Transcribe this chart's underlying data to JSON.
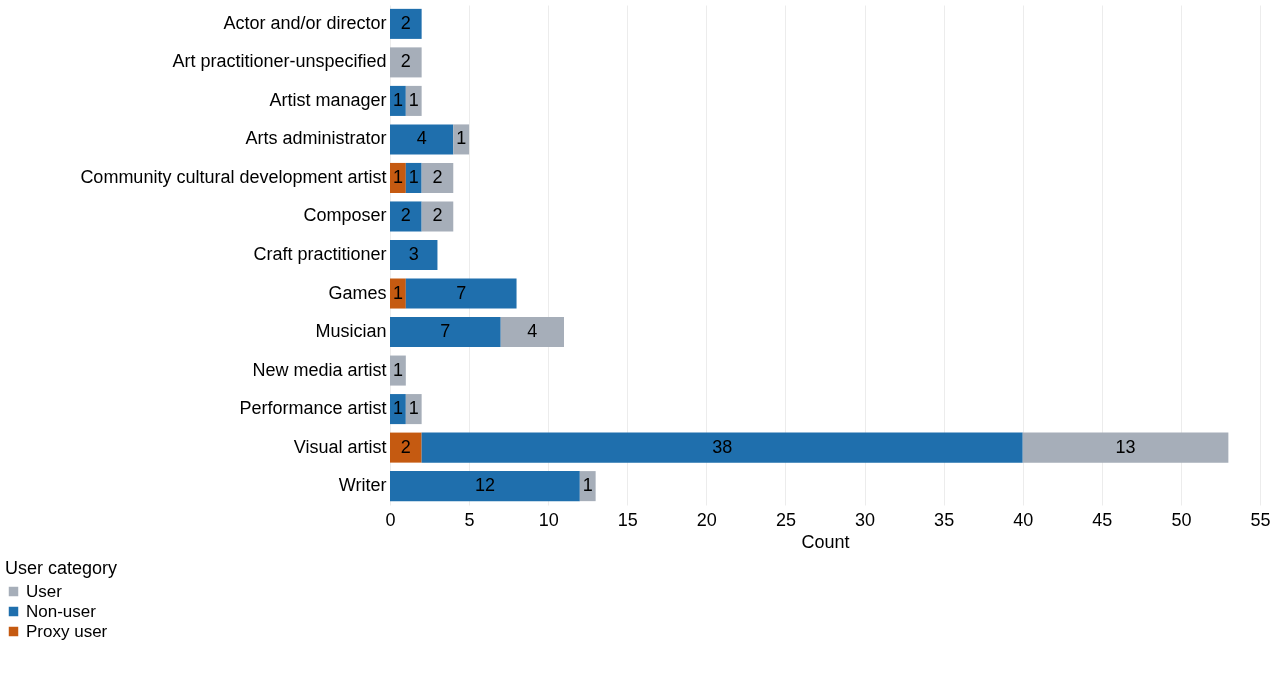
{
  "chart_data": {
    "type": "bar",
    "orientation": "horizontal",
    "stacked": true,
    "data_labels": true,
    "xlabel": "Count",
    "legend_title": "User category",
    "legend": "bottom left",
    "grid": "x",
    "categories": [
      "Actor and/or director",
      "Art practitioner-unspecified",
      "Artist manager",
      "Arts administrator",
      "Community cultural development artist",
      "Composer",
      "Craft practitioner",
      "Games",
      "Musician",
      "New media artist",
      "Performance artist",
      "Visual artist",
      "Writer"
    ],
    "xlim": [
      0,
      55
    ],
    "xticks": [
      0,
      5,
      10,
      15,
      20,
      25,
      30,
      35,
      40,
      45,
      50,
      55
    ],
    "series": [
      {
        "name": "Proxy user",
        "color": "#c55a11",
        "values": [
          null,
          null,
          null,
          null,
          1,
          null,
          null,
          1,
          null,
          null,
          null,
          2,
          null
        ]
      },
      {
        "name": "Non-user",
        "color": "#1f6fad",
        "values": [
          2,
          null,
          1,
          4,
          1,
          2,
          3,
          7,
          7,
          null,
          1,
          38,
          12
        ]
      },
      {
        "name": "User",
        "color": "#a6aeb9",
        "values": [
          null,
          2,
          1,
          1,
          2,
          2,
          null,
          null,
          4,
          1,
          1,
          13,
          1
        ]
      }
    ]
  }
}
